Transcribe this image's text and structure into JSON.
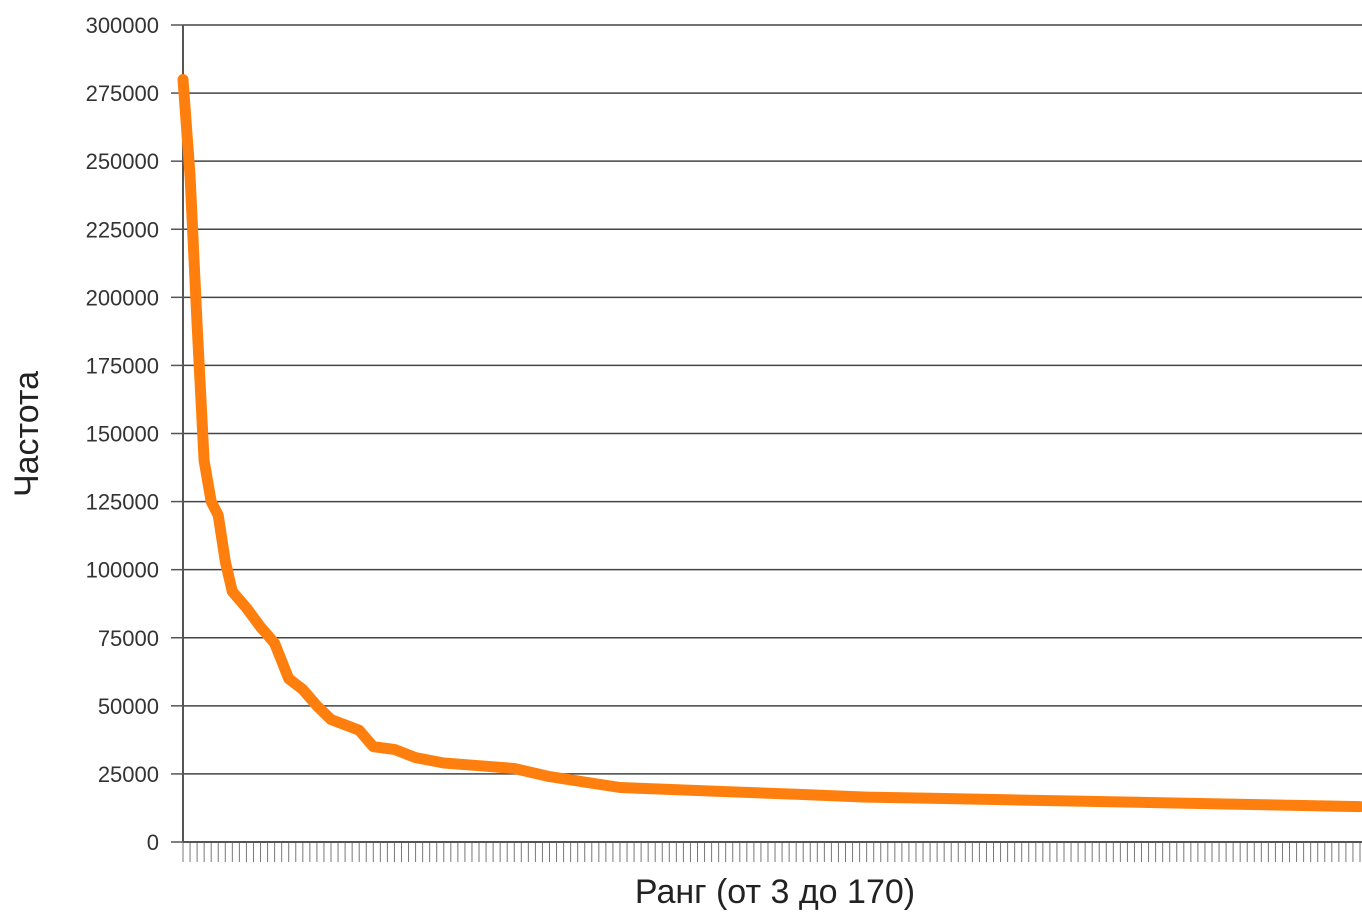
{
  "chart_data": {
    "type": "line",
    "title": "",
    "xlabel": "Ранг (от 3 до 170)",
    "ylabel": "Частота",
    "ylim": [
      0,
      300000
    ],
    "yticks": [
      0,
      25000,
      50000,
      75000,
      100000,
      125000,
      150000,
      175000,
      200000,
      225000,
      250000,
      275000,
      300000
    ],
    "ytick_labels": [
      "0",
      "25000",
      "50000",
      "75000",
      "100000",
      "125000",
      "150000",
      "175000",
      "200000",
      "225000",
      "250000",
      "275000",
      "300000"
    ],
    "x_range": [
      3,
      170
    ],
    "grid": true,
    "line_color": "#ff7f0e",
    "series": [
      {
        "x": [
          3,
          4,
          5,
          6,
          7,
          8,
          9,
          10,
          12,
          14,
          16,
          18,
          20,
          22,
          24,
          26,
          28,
          30,
          33,
          36,
          40,
          45,
          50,
          55,
          60,
          65,
          70,
          75,
          80,
          90,
          100,
          110,
          120,
          130,
          140,
          150,
          160,
          170
        ],
        "y": [
          280000,
          245000,
          190000,
          140000,
          125000,
          120000,
          103000,
          92000,
          86000,
          79000,
          73000,
          60000,
          56000,
          50000,
          45000,
          43000,
          41000,
          35000,
          34000,
          31000,
          29000,
          28000,
          27000,
          24000,
          22000,
          20000,
          19500,
          19000,
          18500,
          17500,
          16500,
          16000,
          15500,
          15000,
          14500,
          14000,
          13500,
          13000
        ]
      }
    ]
  }
}
